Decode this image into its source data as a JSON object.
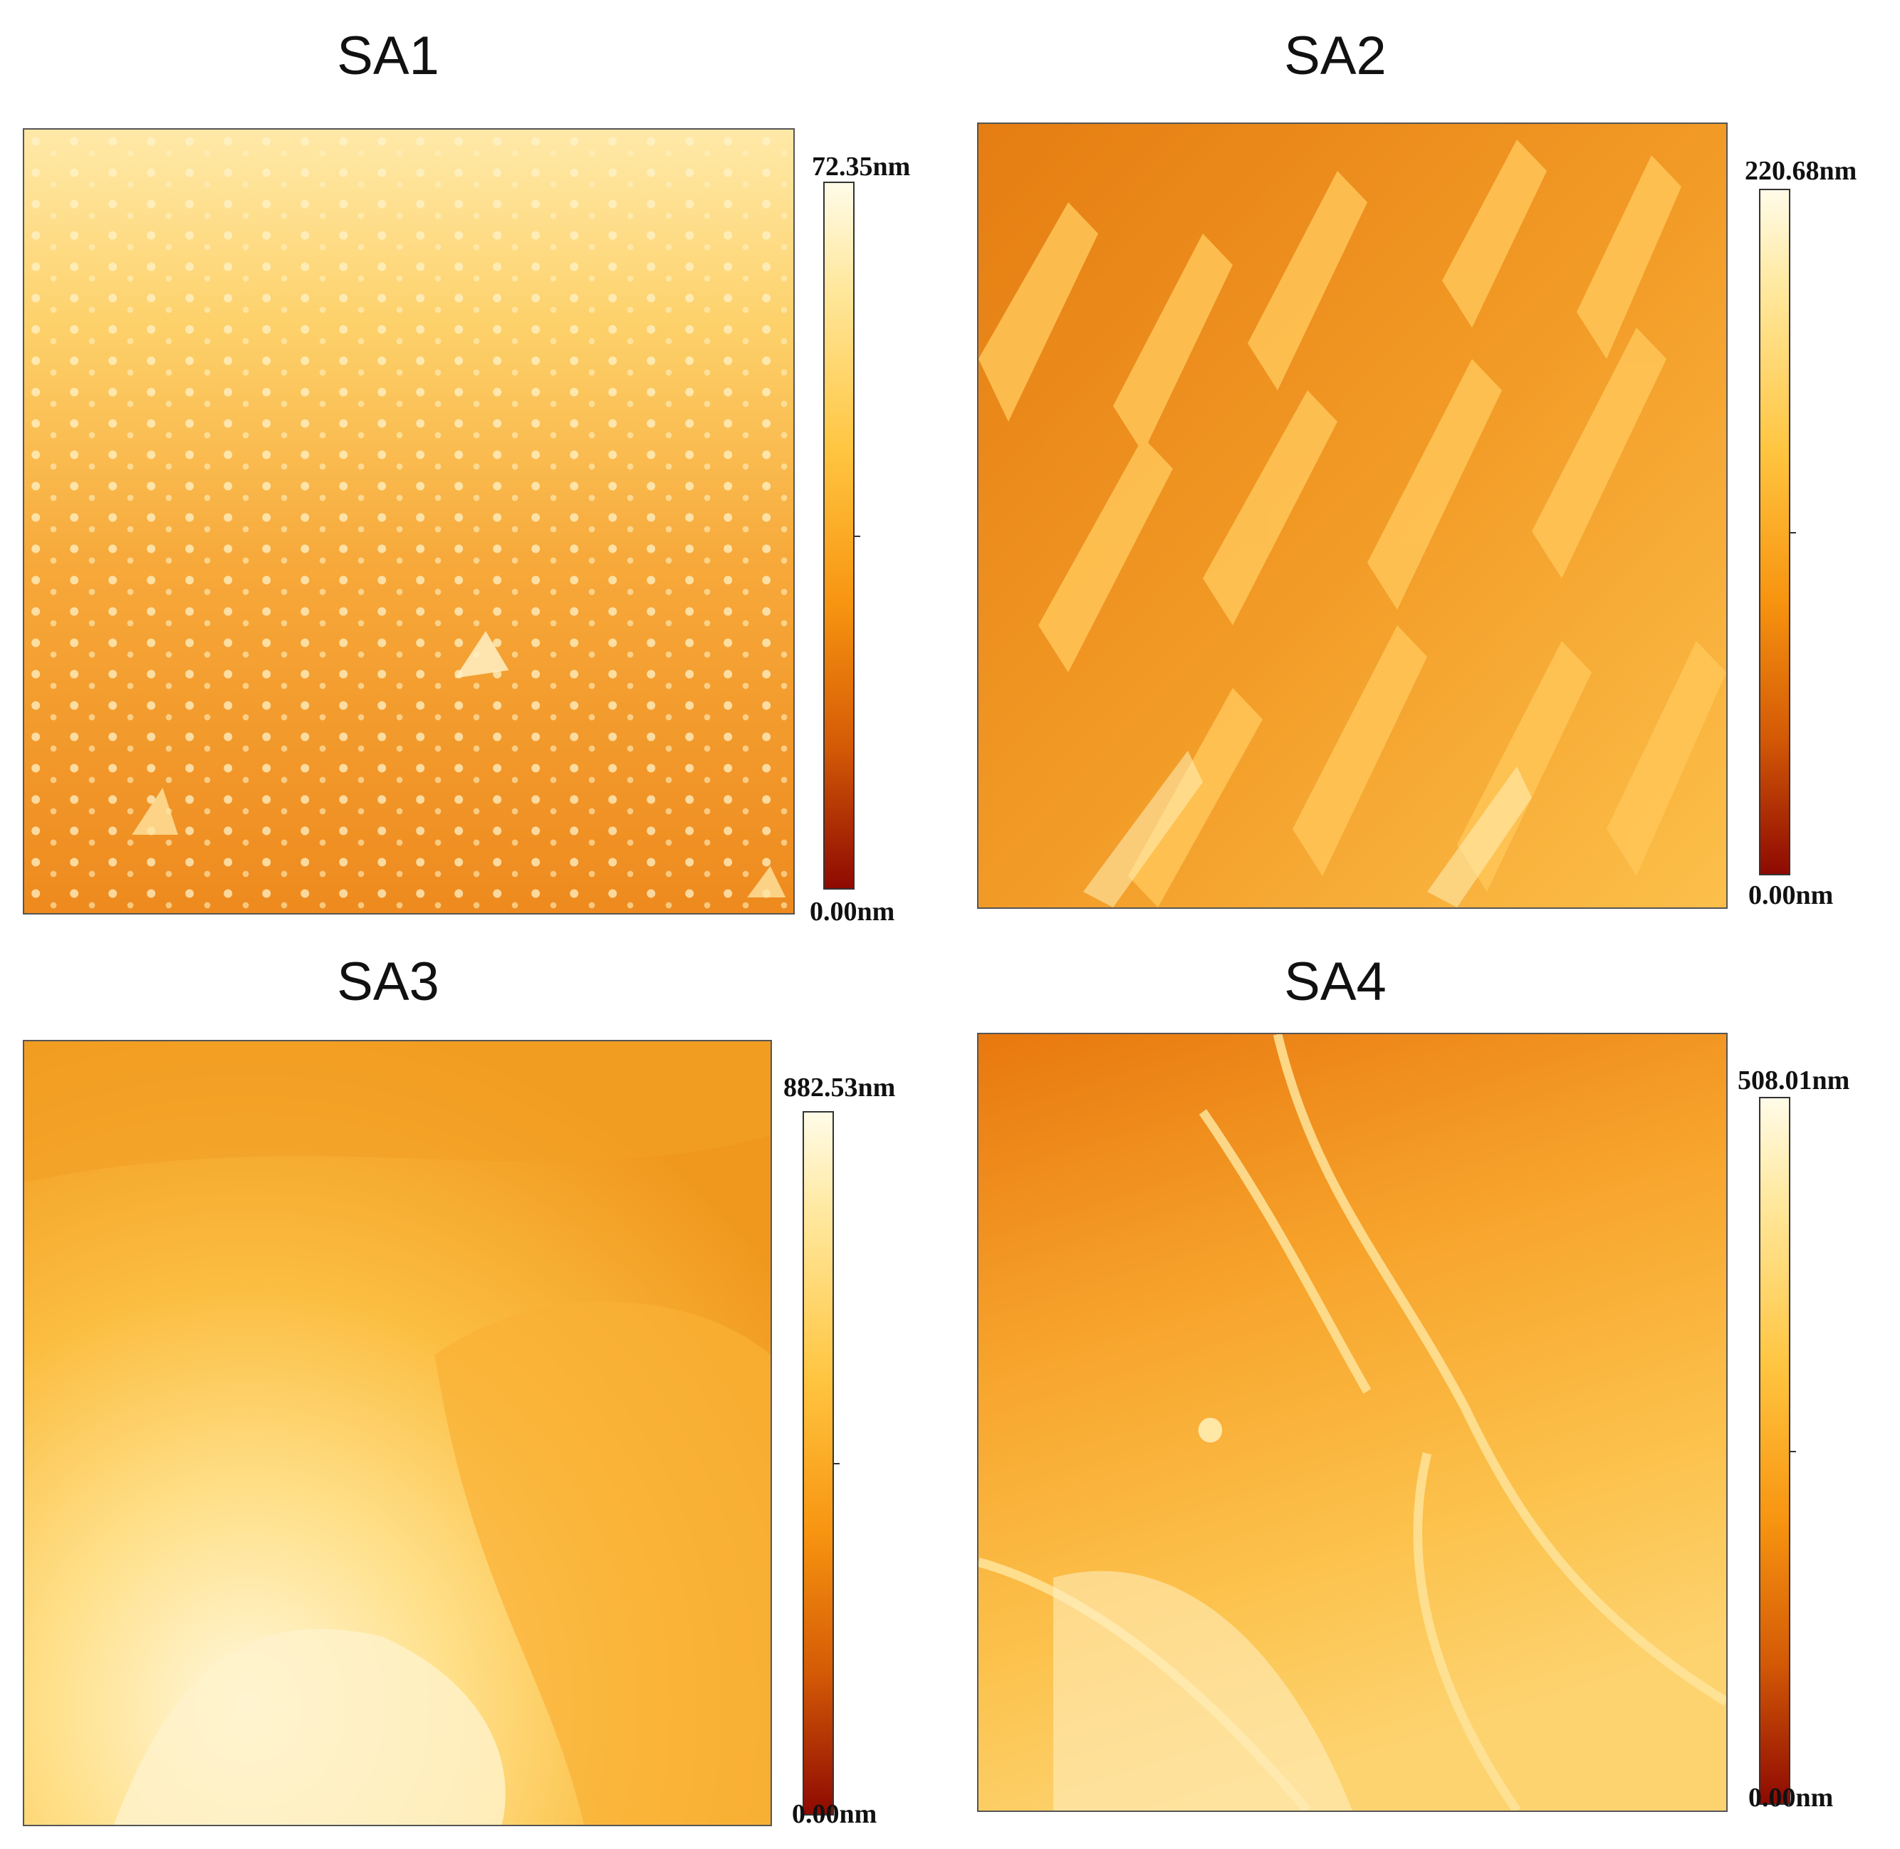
{
  "panels": [
    {
      "title": "SA1",
      "scale_max": "72.35nm",
      "scale_min": "0.00nm"
    },
    {
      "title": "SA2",
      "scale_max": "220.68nm",
      "scale_min": "0.00nm"
    },
    {
      "title": "SA3",
      "scale_max": "882.53nm",
      "scale_min": "0.00nm"
    },
    {
      "title": "SA4",
      "scale_max": "508.01nm",
      "scale_min": "0.00nm"
    }
  ],
  "colors": {
    "light": "#fff6d5",
    "mid": "#f9a51e",
    "dark": "#e06d0c",
    "deep": "#8e0a02"
  }
}
